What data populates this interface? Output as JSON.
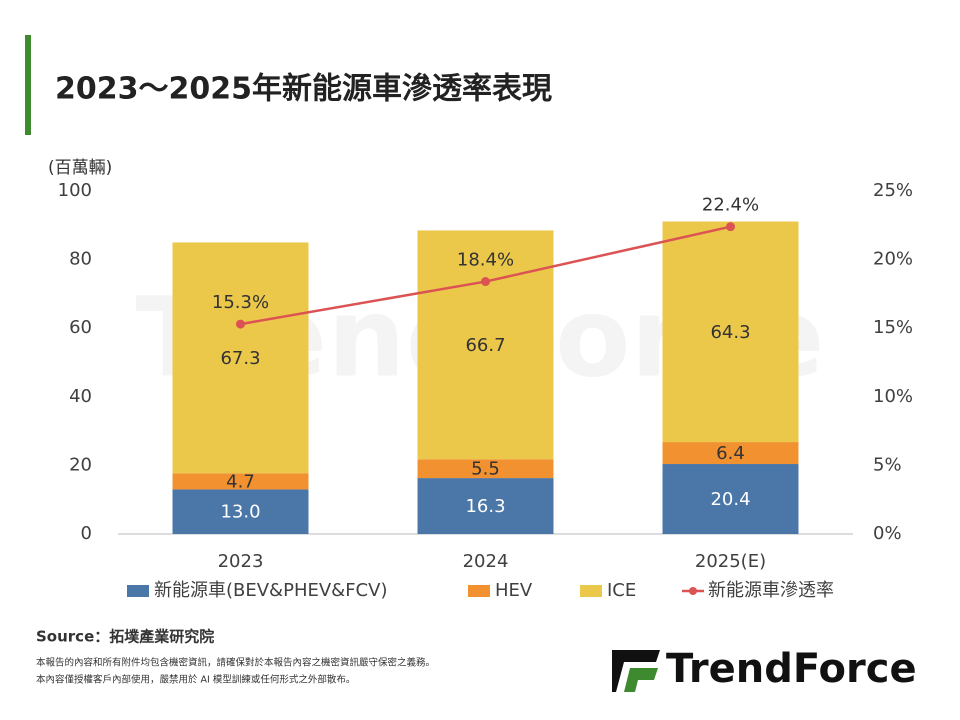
{
  "title": "2023～2025年新能源車滲透率表現",
  "source": "Source：拓墣產業研究院",
  "disclaimer": [
    "本報告的內容和所有附件均包含機密資訊，請確保對於本報告內容之機密資訊嚴守保密之義務。",
    "本內容僅授權客戶內部使用，嚴禁用於 AI 模型訓練或任何形式之外部散布。"
  ],
  "logo": "TrendForce",
  "chart_data": {
    "type": "stacked-bar-line",
    "y_label": "(百萬輛)",
    "categories": [
      "2023",
      "2024",
      "2025(E)"
    ],
    "series": [
      {
        "name": "新能源車(BEV&PHEV&FCV)",
        "color": "#4a76a8",
        "values": [
          13.0,
          16.3,
          20.4
        ],
        "value_labels": [
          "13.0",
          "16.3",
          "20.4"
        ],
        "label_color": "#ffffff"
      },
      {
        "name": "HEV",
        "color": "#f1912f",
        "values": [
          4.7,
          5.5,
          6.4
        ]
      },
      {
        "name": "ICE",
        "color": "#ebc84a",
        "values": [
          67.3,
          66.7,
          64.3
        ]
      },
      {
        "name": "新能源車滲透率",
        "color": "#dc5354",
        "type": "line",
        "axis": "y2",
        "values": [
          15.3,
          18.4,
          22.4
        ],
        "value_labels": [
          "15.3%",
          "18.4%",
          "22.4%"
        ]
      }
    ],
    "ylim": [
      0,
      100
    ],
    "yticks": [
      0,
      20,
      40,
      60,
      80,
      100
    ],
    "y2lim": [
      0,
      25
    ],
    "y2ticks": [
      {
        "value": 0,
        "label": "0%"
      },
      {
        "value": 5,
        "label": "5%"
      },
      {
        "value": 10,
        "label": "10%"
      },
      {
        "value": 15,
        "label": "15%"
      },
      {
        "value": 20,
        "label": "20%"
      },
      {
        "value": 25,
        "label": "25%"
      }
    ],
    "grid": false
  }
}
